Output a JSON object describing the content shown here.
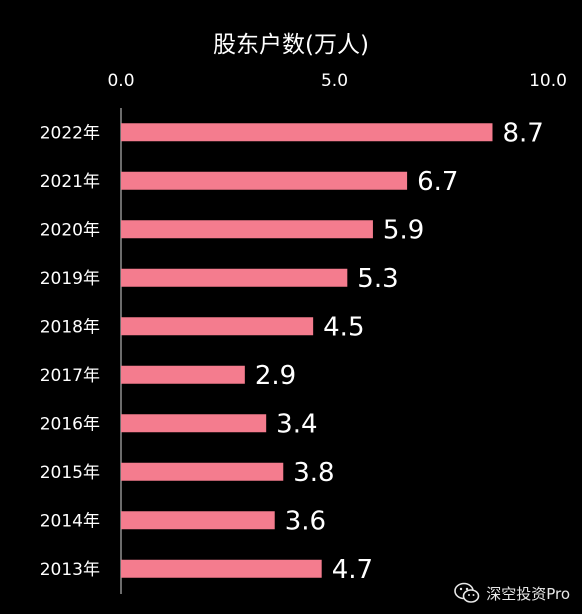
{
  "chart_data": {
    "type": "bar",
    "orientation": "horizontal",
    "title": "股东户数(万人)",
    "categories": [
      "2022年",
      "2021年",
      "2020年",
      "2019年",
      "2018年",
      "2017年",
      "2016年",
      "2015年",
      "2014年",
      "2013年"
    ],
    "values": [
      8.7,
      6.7,
      5.9,
      5.3,
      4.5,
      2.9,
      3.4,
      3.8,
      3.6,
      4.7
    ],
    "xlim": [
      0,
      10
    ],
    "xticks": [
      "0.0",
      "5.0",
      "10.0"
    ],
    "axis_position": "top",
    "grid": false,
    "legend": "none",
    "data_labels": true,
    "bar_color": "#f47c8e",
    "background": "#000000",
    "text_color": "#ffffff"
  },
  "watermark": {
    "text": "深空投资Pro",
    "icon": "wechat-icon"
  }
}
